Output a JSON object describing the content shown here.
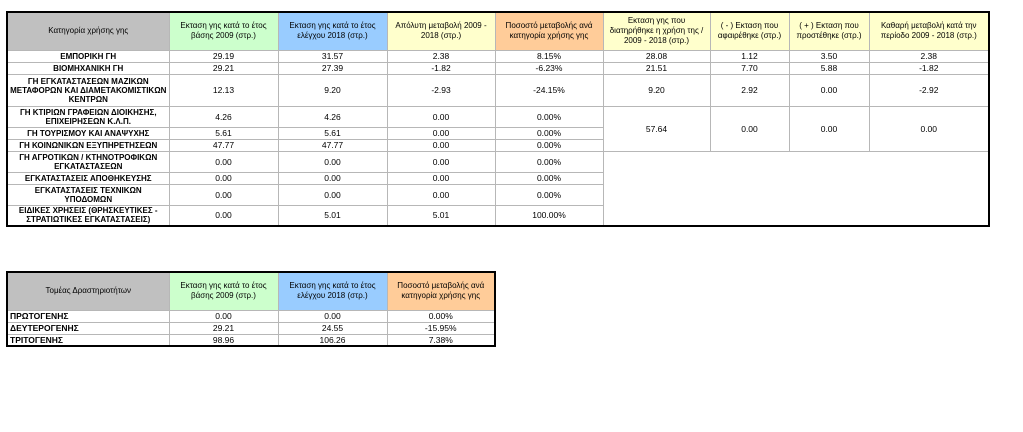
{
  "table1": {
    "headers": [
      "Κατηγορία χρήσης γης",
      "Εκταση γης κατά το έτος βάσης 2009 (στρ.)",
      "Εκταση γης κατά το έτος ελέγχου 2018 (στρ.)",
      "Απόλυτη μεταβολή 2009 - 2018 (στρ.)",
      "Ποσοστό μεταβολής ανά κατηγορία χρήσης γης",
      "Εκταση γης που διατηρήθηκε η χρήση της / 2009 - 2018 (στρ.)",
      "( - ) Εκταση που αφαιρέθηκε (στρ.)",
      "( + ) Εκταση που προστέθηκε (στρ.)",
      "Καθαρή μεταβολή κατά την περίοδο 2009 - 2018 (στρ.)"
    ],
    "rows": [
      {
        "cat": "ΕΜΠΟΡΙΚΗ ΓΗ",
        "v2009": "29.19",
        "v2018": "31.57",
        "abs": "2.38",
        "pct": "8.15%",
        "kept": "28.08",
        "minus": "1.12",
        "plus": "3.50",
        "net": "2.38"
      },
      {
        "cat": "ΒΙΟΜΗΧΑΝΙΚΗ ΓΗ",
        "v2009": "29.21",
        "v2018": "27.39",
        "abs": "-1.82",
        "pct": "-6.23%",
        "kept": "21.51",
        "minus": "7.70",
        "plus": "5.88",
        "net": "-1.82"
      },
      {
        "cat": "ΓΗ ΕΓΚΑΤΑΣΤΑΣΕΩΝ ΜΑΖΙΚΩΝ ΜΕΤΑΦΟΡΩΝ ΚΑΙ ΔΙΑΜΕΤΑΚΟΜΙΣΤΙΚΩΝ ΚΕΝΤΡΩΝ",
        "v2009": "12.13",
        "v2018": "9.20",
        "abs": "-2.93",
        "pct": "-24.15%",
        "kept": "9.20",
        "minus": "2.92",
        "plus": "0.00",
        "net": "-2.92"
      },
      {
        "cat": "ΓΗ ΚΤΙΡΙΩΝ ΓΡΑΦΕΙΩΝ ΔΙΟΙΚΗΣΗΣ, ΕΠΙΧΕΙΡΗΣΕΩΝ Κ.Λ.Π.",
        "v2009": "4.26",
        "v2018": "4.26",
        "abs": "0.00",
        "pct": "0.00%"
      },
      {
        "cat": "ΓΗ ΤΟΥΡΙΣΜΟΥ ΚΑΙ ΑΝΑΨΥΧΗΣ",
        "v2009": "5.61",
        "v2018": "5.61",
        "abs": "0.00",
        "pct": "0.00%"
      },
      {
        "cat": "ΓΗ ΚΟΙΝΩΝΙΚΩΝ ΕΞΥΠΗΡΕΤΗΣΕΩΝ",
        "v2009": "47.77",
        "v2018": "47.77",
        "abs": "0.00",
        "pct": "0.00%"
      },
      {
        "cat": "ΓΗ ΑΓΡΟΤΙΚΩΝ / ΚΤΗΝΟΤΡΟΦΙΚΩΝ ΕΓΚΑΤΑΣΤΑΣΕΩΝ",
        "v2009": "0.00",
        "v2018": "0.00",
        "abs": "0.00",
        "pct": "0.00%"
      },
      {
        "cat": "ΕΓΚΑΤΑΣΤΑΣΕΙΣ ΑΠΟΘΗΚΕΥΣΗΣ",
        "v2009": "0.00",
        "v2018": "0.00",
        "abs": "0.00",
        "pct": "0.00%"
      },
      {
        "cat": "ΕΓΚΑΤΑΣΤΑΣΕΙΣ ΤΕΧΝΙΚΩΝ ΥΠΟΔΟΜΩΝ",
        "v2009": "0.00",
        "v2018": "0.00",
        "abs": "0.00",
        "pct": "0.00%"
      },
      {
        "cat": "ΕΙΔΙΚΕΣ ΧΡΗΣΕΙΣ (ΘΡΗΣΚΕΥΤΙΚΕΣ - ΣΤΡΑΤΙΩΤΙΚΕΣ ΕΓΚΑΤΑΣΤΑΣΕΙΣ)",
        "v2009": "0.00",
        "v2018": "5.01",
        "abs": "5.01",
        "pct": "100.00%"
      }
    ],
    "merged": {
      "kept": "57.64",
      "minus": "0.00",
      "plus": "0.00",
      "net": "0.00"
    }
  },
  "table2": {
    "headers": [
      "Τομέας Δραστηριοτήτων",
      "Εκταση γης κατά το έτος βάσης 2009 (στρ.)",
      "Εκταση γης κατά το έτος ελέγχου 2018 (στρ.)",
      "Ποσοστό μεταβολής ανά κατηγορία χρήσης γης"
    ],
    "rows": [
      {
        "sector": "ΠΡΩΤΟΓΕΝΗΣ",
        "v2009": "0.00",
        "v2018": "0.00",
        "pct": "0.00%"
      },
      {
        "sector": "ΔΕΥΤΕΡΟΓΕΝΗΣ",
        "v2009": "29.21",
        "v2018": "24.55",
        "pct": "-15.95%"
      },
      {
        "sector": "ΤΡΙΤΟΓΕΝΗΣ",
        "v2009": "98.96",
        "v2018": "106.26",
        "pct": "7.38%"
      }
    ]
  },
  "colors": {
    "gray": "#c0c0c0",
    "green": "#ccffcc",
    "blue": "#99ccff",
    "yellow": "#ffffcc",
    "orange": "#ffcc99"
  }
}
